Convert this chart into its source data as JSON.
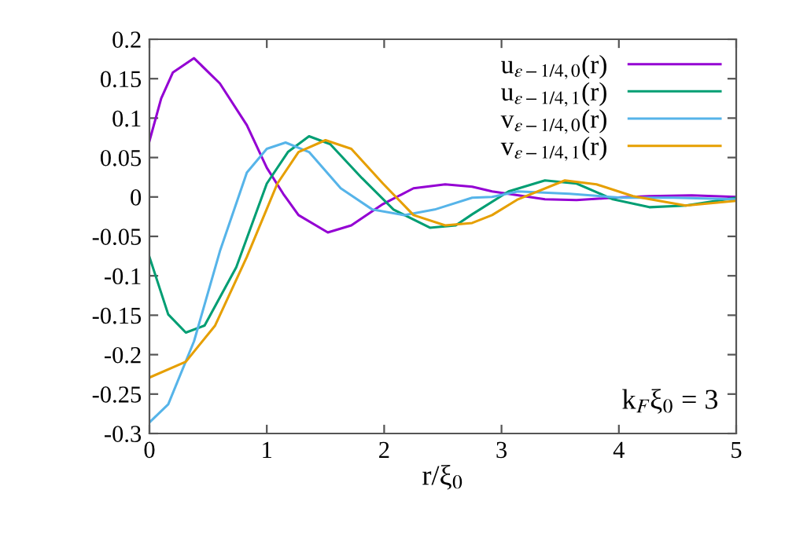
{
  "chart_data": {
    "type": "line",
    "xlabel": "r/ξ$_{0}$",
    "xlim": [
      0,
      5
    ],
    "xticks": [
      0,
      1,
      2,
      3,
      4,
      5
    ],
    "ylim": [
      -0.3,
      0.2
    ],
    "yticks": [
      -0.3,
      -0.25,
      -0.2,
      -0.15,
      -0.1,
      -0.05,
      0,
      0.05,
      0.1,
      0.15,
      0.2
    ],
    "grid": false,
    "legend": "top right",
    "marker": "none",
    "line_style": "solid",
    "annotations": [
      "k$_{F}$ξ$_{0}$ = 3"
    ],
    "series": [
      {
        "name": "u$_{ε−1/4,0}$(r)",
        "color": "#9400d3",
        "x": [
          0,
          0.1,
          0.2,
          0.38,
          0.6,
          0.83,
          1.0,
          1.14,
          1.27,
          1.52,
          1.72,
          1.99,
          2.25,
          2.52,
          2.75,
          2.92,
          3.37,
          3.64,
          3.95,
          4.26,
          4.62,
          5.0
        ],
        "values": [
          0.071,
          0.125,
          0.158,
          0.176,
          0.144,
          0.091,
          0.037,
          0.004,
          -0.023,
          -0.045,
          -0.036,
          -0.009,
          0.011,
          0.016,
          0.013,
          0.007,
          -0.003,
          -0.004,
          -0.001,
          0.001,
          0.002,
          0
        ]
      },
      {
        "name": "u$_{ε−1/4,1}$(r)",
        "color": "#009e73",
        "x": [
          0,
          0.16,
          0.31,
          0.47,
          0.74,
          1.0,
          1.18,
          1.36,
          1.54,
          1.81,
          2.08,
          2.39,
          2.61,
          2.75,
          3.06,
          3.37,
          3.64,
          3.95,
          4.26,
          4.57,
          5.0
        ],
        "values": [
          -0.076,
          -0.149,
          -0.172,
          -0.163,
          -0.089,
          0.017,
          0.057,
          0.077,
          0.067,
          0.024,
          -0.016,
          -0.039,
          -0.036,
          -0.022,
          0.007,
          0.021,
          0.017,
          -0.003,
          -0.013,
          -0.011,
          -0.001
        ]
      },
      {
        "name": "v$_{ε−1/4,0}$(r)",
        "color": "#56b4e9",
        "x": [
          0,
          0.16,
          0.38,
          0.6,
          0.83,
          1.0,
          1.16,
          1.36,
          1.63,
          1.9,
          2.17,
          2.43,
          2.75,
          2.92,
          3.14,
          3.58,
          4.02,
          4.46,
          5.0
        ],
        "values": [
          -0.286,
          -0.263,
          -0.183,
          -0.069,
          0.031,
          0.061,
          0.069,
          0.057,
          0.011,
          -0.016,
          -0.023,
          -0.016,
          -0.001,
          0,
          0.007,
          0.004,
          -0.001,
          -0.001,
          -0.003
        ]
      },
      {
        "name": "v$_{ε−1/4,1}$(r)",
        "color": "#e69f00",
        "x": [
          0,
          0.31,
          0.56,
          0.83,
          1.09,
          1.27,
          1.5,
          1.72,
          1.99,
          2.25,
          2.52,
          2.75,
          2.92,
          3.14,
          3.54,
          3.81,
          4.12,
          4.57,
          5.0
        ],
        "values": [
          -0.229,
          -0.209,
          -0.163,
          -0.076,
          0.017,
          0.057,
          0.072,
          0.061,
          0.017,
          -0.023,
          -0.036,
          -0.033,
          -0.023,
          -0.003,
          0.021,
          0.016,
          0.001,
          -0.011,
          -0.005
        ]
      }
    ]
  }
}
